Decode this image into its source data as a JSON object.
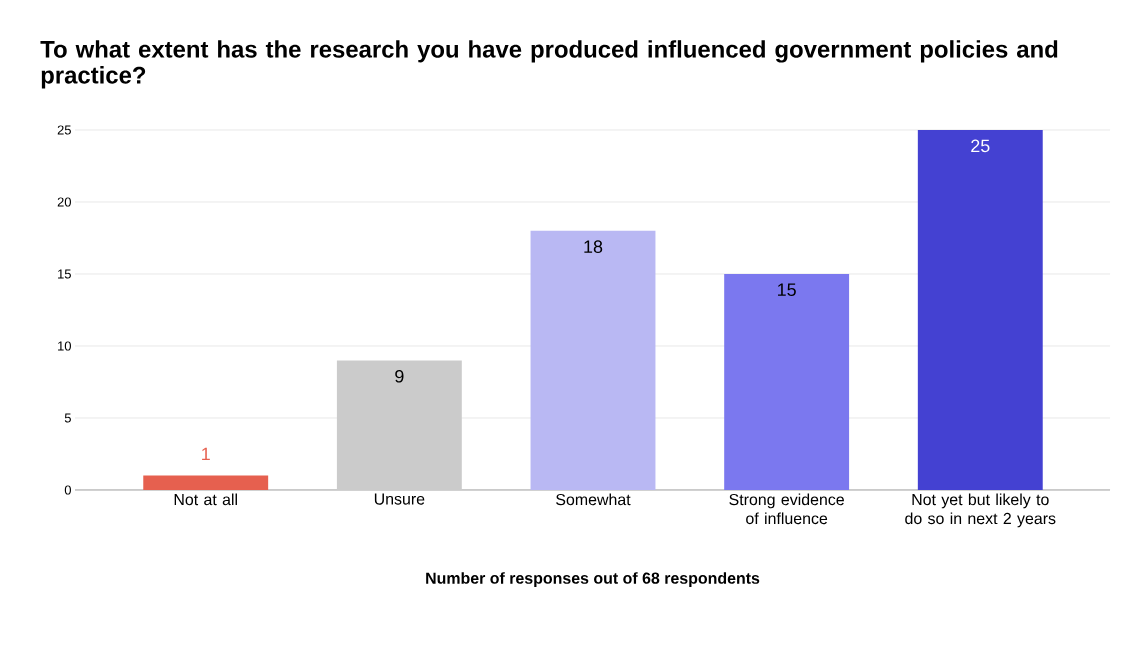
{
  "chart_data": {
    "type": "bar",
    "title": "To what extent has the research you have produced influenced government policies and practice?",
    "xlabel": "Number of responses out of 68 respondents",
    "categories": [
      "Not at all",
      "Unsure",
      "Somewhat",
      "Strong evidence of influence",
      "Not yet but likely to do so in next 2 years"
    ],
    "values": [
      1,
      9,
      18,
      15,
      25
    ],
    "colors": [
      "#e6604f",
      "#cbcbcb",
      "#b9b8f3",
      "#7b78ef",
      "#4441d2"
    ],
    "ylim": [
      0,
      25
    ],
    "yticks": [
      0,
      5,
      10,
      15,
      20,
      25
    ],
    "grid": "y",
    "data_labels": true
  }
}
